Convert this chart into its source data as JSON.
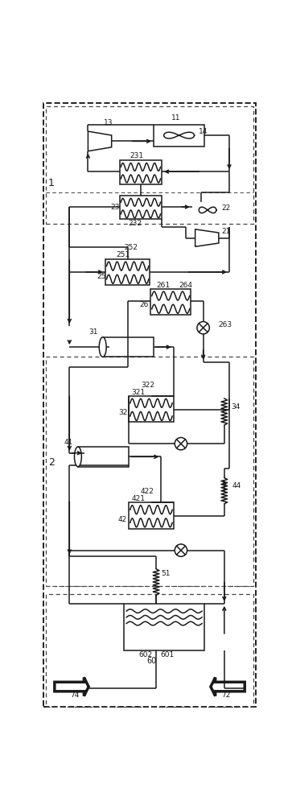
{
  "fig_width": 3.63,
  "fig_height": 10.0,
  "dpi": 100,
  "lc": "#1a1a1a",
  "lw": 1.1,
  "bg": "#ffffff"
}
